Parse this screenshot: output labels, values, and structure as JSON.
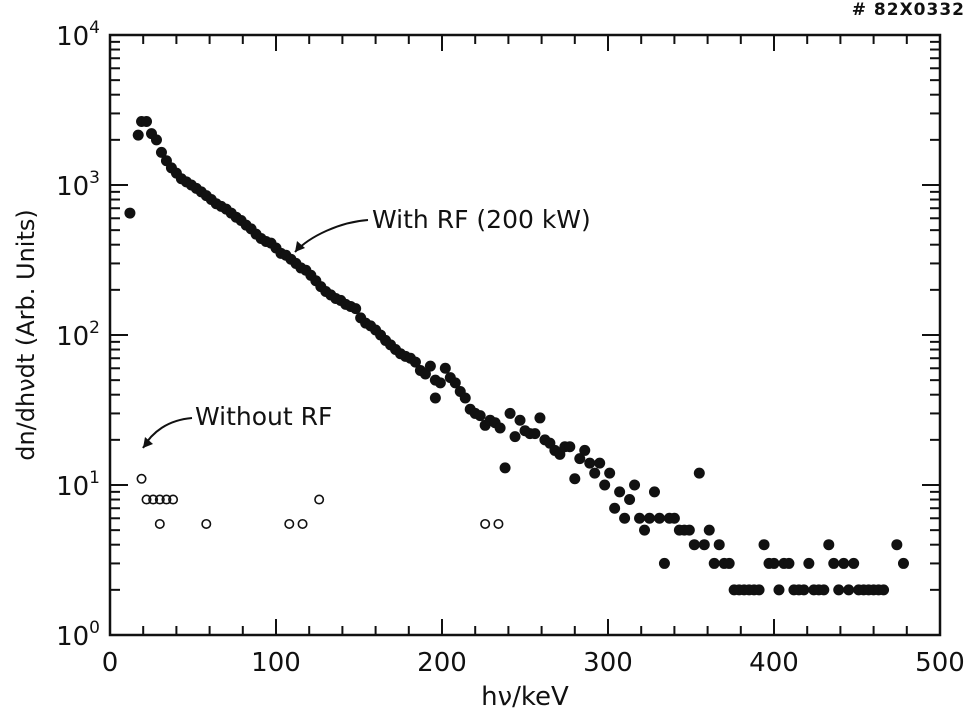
{
  "figure_tag": "# 82X0332",
  "chart_data": {
    "type": "scatter",
    "title": "",
    "xlabel": "hν/keV",
    "ylabel": "dn/dhνdt (Arb. Units)",
    "xlim": [
      0,
      500
    ],
    "ylim": [
      1,
      10000
    ],
    "yscale": "log",
    "x_ticks": [
      0,
      100,
      200,
      300,
      400,
      500
    ],
    "x_tick_labels": [
      "0",
      "100",
      "200",
      "300",
      "400",
      "500"
    ],
    "y_ticks": [
      1,
      10,
      100,
      1000,
      10000
    ],
    "y_tick_labels": [
      {
        "base": "10",
        "exp": "0"
      },
      {
        "base": "10",
        "exp": "1"
      },
      {
        "base": "10",
        "exp": "2"
      },
      {
        "base": "10",
        "exp": "3"
      },
      {
        "base": "10",
        "exp": "4"
      }
    ],
    "grid": false,
    "series": [
      {
        "name": "With RF (200 kW)",
        "marker": "filled-circle",
        "color": "#111111",
        "points": [
          [
            12,
            650
          ],
          [
            17,
            2150
          ],
          [
            19,
            2650
          ],
          [
            22,
            2650
          ],
          [
            25,
            2200
          ],
          [
            28,
            2000
          ],
          [
            31,
            1650
          ],
          [
            34,
            1450
          ],
          [
            37,
            1300
          ],
          [
            40,
            1200
          ],
          [
            43,
            1100
          ],
          [
            46,
            1050
          ],
          [
            49,
            1000
          ],
          [
            52,
            950
          ],
          [
            55,
            900
          ],
          [
            58,
            850
          ],
          [
            61,
            800
          ],
          [
            64,
            750
          ],
          [
            67,
            720
          ],
          [
            70,
            690
          ],
          [
            73,
            650
          ],
          [
            76,
            610
          ],
          [
            79,
            580
          ],
          [
            82,
            540
          ],
          [
            85,
            510
          ],
          [
            88,
            470
          ],
          [
            91,
            440
          ],
          [
            94,
            420
          ],
          [
            97,
            410
          ],
          [
            100,
            380
          ],
          [
            103,
            350
          ],
          [
            106,
            340
          ],
          [
            109,
            320
          ],
          [
            112,
            300
          ],
          [
            115,
            280
          ],
          [
            118,
            270
          ],
          [
            121,
            250
          ],
          [
            124,
            230
          ],
          [
            127,
            210
          ],
          [
            130,
            195
          ],
          [
            133,
            185
          ],
          [
            136,
            175
          ],
          [
            139,
            170
          ],
          [
            142,
            160
          ],
          [
            145,
            155
          ],
          [
            148,
            150
          ],
          [
            151,
            130
          ],
          [
            154,
            120
          ],
          [
            157,
            115
          ],
          [
            160,
            108
          ],
          [
            163,
            100
          ],
          [
            166,
            92
          ],
          [
            169,
            86
          ],
          [
            172,
            80
          ],
          [
            175,
            75
          ],
          [
            178,
            72
          ],
          [
            181,
            70
          ],
          [
            184,
            66
          ],
          [
            187,
            58
          ],
          [
            190,
            55
          ],
          [
            193,
            62
          ],
          [
            196,
            50
          ],
          [
            199,
            48
          ],
          [
            202,
            60
          ],
          [
            205,
            52
          ],
          [
            208,
            48
          ],
          [
            211,
            42
          ],
          [
            214,
            38
          ],
          [
            196,
            38
          ],
          [
            217,
            32
          ],
          [
            220,
            30
          ],
          [
            223,
            29
          ],
          [
            226,
            25
          ],
          [
            229,
            27
          ],
          [
            232,
            26
          ],
          [
            235,
            24
          ],
          [
            238,
            13
          ],
          [
            241,
            30
          ],
          [
            244,
            21
          ],
          [
            247,
            27
          ],
          [
            250,
            23
          ],
          [
            253,
            22
          ],
          [
            256,
            22
          ],
          [
            259,
            28
          ],
          [
            262,
            20
          ],
          [
            265,
            19
          ],
          [
            268,
            17
          ],
          [
            271,
            16
          ],
          [
            274,
            18
          ],
          [
            277,
            18
          ],
          [
            280,
            11
          ],
          [
            283,
            15
          ],
          [
            286,
            17
          ],
          [
            289,
            14
          ],
          [
            292,
            12
          ],
          [
            295,
            14
          ],
          [
            298,
            10
          ],
          [
            301,
            12
          ],
          [
            304,
            7
          ],
          [
            307,
            9
          ],
          [
            310,
            6
          ],
          [
            313,
            8
          ],
          [
            316,
            10
          ],
          [
            319,
            6
          ],
          [
            322,
            5
          ],
          [
            325,
            6
          ],
          [
            328,
            9
          ],
          [
            331,
            6
          ],
          [
            334,
            3
          ],
          [
            337,
            6
          ],
          [
            340,
            6
          ],
          [
            343,
            5
          ],
          [
            346,
            5
          ],
          [
            349,
            5
          ],
          [
            352,
            4
          ],
          [
            355,
            12
          ],
          [
            358,
            4
          ],
          [
            361,
            5
          ],
          [
            364,
            3
          ],
          [
            367,
            4
          ],
          [
            370,
            3
          ],
          [
            373,
            3
          ],
          [
            376,
            2
          ],
          [
            379,
            2
          ],
          [
            382,
            2
          ],
          [
            385,
            2
          ],
          [
            388,
            2
          ],
          [
            391,
            2
          ],
          [
            394,
            4
          ],
          [
            397,
            3
          ],
          [
            400,
            3
          ],
          [
            403,
            2
          ],
          [
            406,
            3
          ],
          [
            409,
            3
          ],
          [
            412,
            2
          ],
          [
            415,
            2
          ],
          [
            418,
            2
          ],
          [
            421,
            3
          ],
          [
            424,
            2
          ],
          [
            427,
            2
          ],
          [
            430,
            2
          ],
          [
            433,
            4
          ],
          [
            436,
            3
          ],
          [
            439,
            2
          ],
          [
            442,
            3
          ],
          [
            445,
            2
          ],
          [
            448,
            3
          ],
          [
            451,
            2
          ],
          [
            454,
            2
          ],
          [
            457,
            2
          ],
          [
            460,
            2
          ],
          [
            463,
            2
          ],
          [
            466,
            2
          ],
          [
            474,
            4
          ],
          [
            478,
            3
          ]
        ]
      },
      {
        "name": "Without RF",
        "marker": "open-circle",
        "color": "#111111",
        "points": [
          [
            19,
            11
          ],
          [
            22,
            8
          ],
          [
            26,
            8
          ],
          [
            30,
            8
          ],
          [
            34,
            8
          ],
          [
            38,
            8
          ],
          [
            30,
            5.5
          ],
          [
            58,
            5.5
          ],
          [
            108,
            5.5
          ],
          [
            116,
            5.5
          ],
          [
            126,
            8
          ],
          [
            226,
            5.5
          ],
          [
            234,
            5.5
          ]
        ]
      }
    ],
    "annotations": [
      {
        "text": "With RF (200 kW)",
        "series": 0,
        "point": [
          120,
          290
        ]
      },
      {
        "text": "Without RF",
        "series": 1,
        "point": [
          19,
          11
        ]
      }
    ]
  }
}
